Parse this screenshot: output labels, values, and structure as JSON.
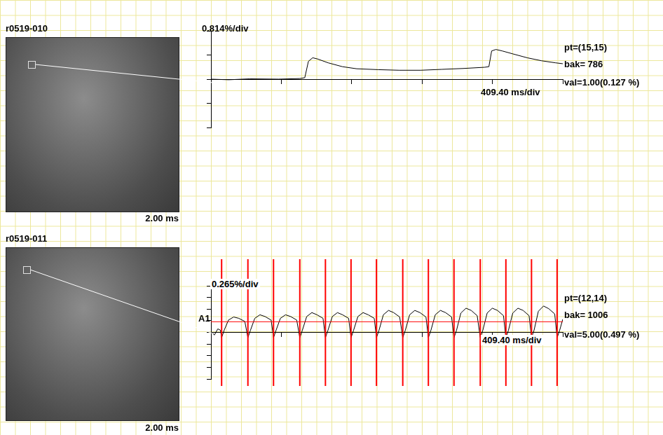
{
  "chart_data": [
    {
      "type": "line",
      "title": "r0519-010",
      "image_label": "2.00 ms",
      "y_scale_label": "0.814%/div",
      "x_scale_label": "409.40 ms/div",
      "annotations": [
        "pt=(15,15)",
        "bak= 786",
        "val=1.00(0.127 %)"
      ],
      "x": [
        0,
        103,
        227,
        393,
        517,
        546,
        567,
        592,
        620,
        682,
        765,
        848,
        972,
        1096,
        1220,
        1344,
        1468,
        1592,
        1617,
        1633,
        1658,
        1695,
        1757,
        1840,
        1923,
        2005,
        2047
      ],
      "series": [
        {
          "color": "#000000",
          "values": [
            0.0,
            -0.02,
            0.01,
            0.0,
            0.02,
            0.05,
            0.6,
            0.72,
            0.68,
            0.55,
            0.42,
            0.35,
            0.32,
            0.3,
            0.3,
            0.33,
            0.36,
            0.4,
            0.42,
            0.95,
            1.0,
            0.95,
            0.85,
            0.72,
            0.62,
            0.55,
            0.52
          ]
        }
      ],
      "xlim": [
        0,
        2047
      ],
      "xticks": [
        0,
        409.4,
        818.8,
        1228.2,
        1637.6,
        2047
      ],
      "ylim": [
        -1.628,
        1.628
      ],
      "yticks": [
        -1.628,
        -0.814,
        0,
        0.814,
        1.628
      ],
      "grid": false,
      "tick_labels": false
    },
    {
      "type": "line",
      "title": "r0519-011",
      "image_label": "2.00 ms",
      "y_scale_label": "0.265%/div",
      "x_scale_label": "409.40 ms/div",
      "annotations": [
        "pt=(12,14)",
        "bak= 1006",
        "val=5.00(0.497 %)"
      ],
      "x": [
        0,
        20,
        40,
        55,
        62,
        77,
        102,
        132,
        162,
        197,
        215,
        230,
        255,
        285,
        315,
        350,
        364,
        379,
        404,
        434,
        464,
        499,
        517,
        532,
        557,
        587,
        617,
        652,
        666,
        681,
        706,
        736,
        766,
        801,
        815,
        830,
        855,
        885,
        915,
        950,
        963,
        978,
        1003,
        1033,
        1063,
        1098,
        1116,
        1131,
        1156,
        1186,
        1216,
        1251,
        1265,
        1280,
        1305,
        1335,
        1365,
        1400,
        1414,
        1429,
        1454,
        1484,
        1514,
        1549,
        1567,
        1582,
        1607,
        1637,
        1667,
        1702,
        1716,
        1731,
        1756,
        1786,
        1816,
        1851,
        1865,
        1880,
        1905,
        1935,
        1965,
        2000,
        2014,
        2029,
        2047
      ],
      "series": [
        {
          "color": "#000000",
          "values": [
            0.02,
            -0.06,
            0.08,
            0.05,
            -0.12,
            0.05,
            0.28,
            0.35,
            0.32,
            0.25,
            -0.12,
            0.05,
            0.32,
            0.4,
            0.36,
            0.28,
            -0.12,
            0.05,
            0.32,
            0.4,
            0.36,
            0.28,
            -0.12,
            0.05,
            0.36,
            0.45,
            0.4,
            0.32,
            -0.12,
            0.05,
            0.36,
            0.45,
            0.4,
            0.32,
            -0.12,
            0.05,
            0.36,
            0.45,
            0.4,
            0.32,
            -0.12,
            0.05,
            0.4,
            0.5,
            0.45,
            0.35,
            -0.12,
            0.05,
            0.4,
            0.5,
            0.45,
            0.35,
            -0.12,
            0.05,
            0.4,
            0.5,
            0.45,
            0.35,
            -0.12,
            0.05,
            0.44,
            0.55,
            0.5,
            0.38,
            -0.12,
            0.05,
            0.44,
            0.55,
            0.5,
            0.38,
            -0.12,
            0.05,
            0.44,
            0.55,
            0.5,
            0.38,
            -0.12,
            0.05,
            0.48,
            0.6,
            0.54,
            0.42,
            -0.12,
            0.05,
            0.3
          ]
        }
      ],
      "events": {
        "color": "#ff0000",
        "x": [
          62,
          215,
          364,
          517,
          666,
          815,
          963,
          1116,
          1265,
          1414,
          1567,
          1716,
          1865,
          2014
        ]
      },
      "threshold": {
        "label": "A1",
        "value": 0.25,
        "color": "#ff0000"
      },
      "xlim": [
        0,
        2047
      ],
      "xticks": [
        0,
        409.4,
        818.8,
        1228.2,
        1637.6,
        2047
      ],
      "ylim": [
        -1.06,
        1.06
      ],
      "yticks": [
        -1.06,
        -0.795,
        -0.53,
        -0.265,
        0,
        0.265,
        0.53,
        0.795,
        1.06
      ],
      "grid": false,
      "tick_labels": false
    }
  ]
}
